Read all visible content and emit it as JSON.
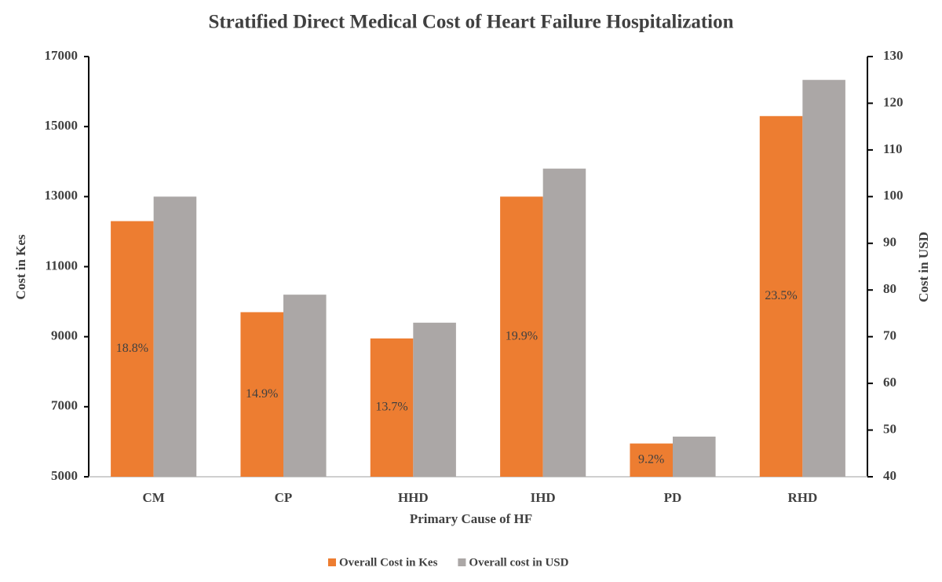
{
  "chart_data": {
    "type": "bar",
    "title": "Stratified Direct Medical Cost of Heart Failure Hospitalization",
    "xlabel": "Primary Cause of HF",
    "ylabel": "Cost in Kes",
    "y2label": "Cost in USD",
    "categories": [
      "CM",
      "CP",
      "HHD",
      "IHD",
      "PD",
      "RHD"
    ],
    "series": [
      {
        "name": "Overall Cost in Kes",
        "color": "#ED7D31",
        "values": [
          12300,
          9700,
          8950,
          13000,
          5950,
          15300
        ],
        "annotations": [
          "18.8%",
          "14.9%",
          "13.7%",
          "19.9%",
          "9.2%",
          "23.5%"
        ]
      },
      {
        "name": "Overall cost in USD",
        "color": "#ABA7A6",
        "axis": "y2",
        "values": [
          100,
          79,
          73,
          106,
          48.6,
          125
        ]
      }
    ],
    "ylim": [
      5000,
      17000
    ],
    "yticks": [
      5000,
      7000,
      9000,
      11000,
      13000,
      15000,
      17000
    ],
    "y2lim": [
      40,
      130
    ],
    "y2ticks": [
      40,
      50,
      60,
      70,
      80,
      90,
      100,
      110,
      120,
      130
    ],
    "legend": "bottom"
  }
}
